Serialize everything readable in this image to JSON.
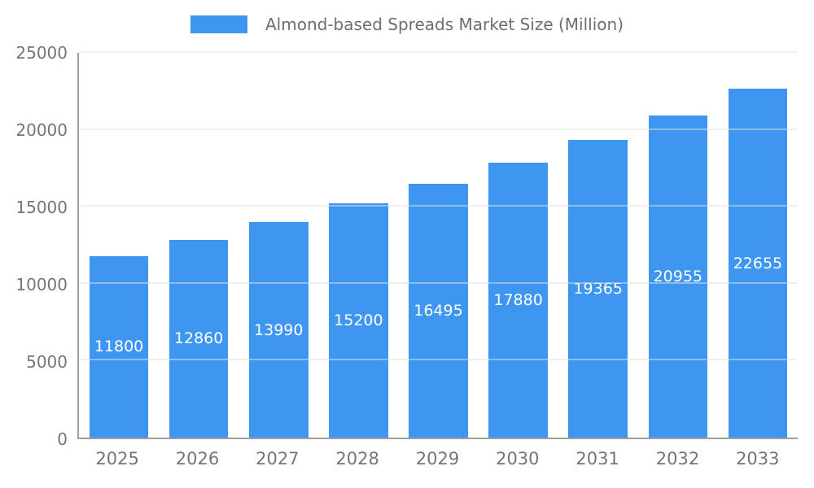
{
  "chart_data": {
    "type": "bar",
    "title": "Almond-based Spreads Market Size (Million)",
    "categories": [
      "2025",
      "2026",
      "2027",
      "2028",
      "2029",
      "2030",
      "2031",
      "2032",
      "2033"
    ],
    "values": [
      11800,
      12860,
      13990,
      15200,
      16495,
      17880,
      19365,
      20955,
      22655
    ],
    "xlabel": "",
    "ylabel": "",
    "ylim": [
      0,
      25000
    ],
    "yticks": [
      0,
      5000,
      10000,
      15000,
      20000,
      25000
    ],
    "grid": true,
    "legend_position": "top",
    "bar_color": "#3E96F0",
    "value_label_color": "#ffffff",
    "tick_label_color": "#757575",
    "title_color": "#6e6e6e",
    "gridline_color": "#e0e0e0",
    "axis_line_color": "#9e9e9e"
  }
}
